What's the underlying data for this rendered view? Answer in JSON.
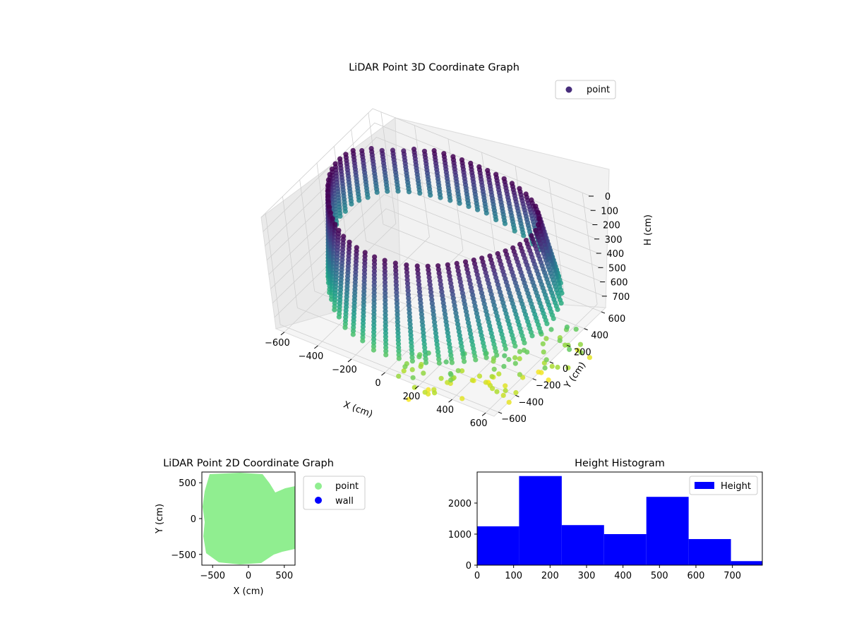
{
  "chart_data": [
    {
      "type": "scatter3d",
      "title": "LiDAR Point 3D Coordinate Graph",
      "xlabel": "X (cm)",
      "ylabel": "Y (cm)",
      "zlabel": "H (cm)",
      "xticks": [
        "−600",
        "−400",
        "−200",
        "0",
        "200",
        "400",
        "600"
      ],
      "yticks": [
        "−600",
        "−400",
        "−200",
        "0",
        "200",
        "400",
        "600"
      ],
      "zticks": [
        "0",
        "100",
        "200",
        "300",
        "400",
        "500",
        "600",
        "700"
      ],
      "xlim": [
        -650,
        650
      ],
      "ylim": [
        -650,
        650
      ],
      "zlim": [
        0,
        780
      ],
      "z_inverted": true,
      "colormap": "viridis",
      "legend": {
        "placement": "upper-right",
        "entries": [
          {
            "label": "point",
            "color": "#472d7b"
          }
        ]
      },
      "grid": true,
      "description_of_shape": "ring of points, radius ~600 cm, heights 0 to ~780 cm"
    },
    {
      "type": "scatter",
      "title": "LiDAR Point 2D Coordinate Graph",
      "xlabel": "X (cm)",
      "ylabel": "Y (cm)",
      "xticks": [
        "−500",
        "0",
        "500"
      ],
      "yticks": [
        "500",
        "0",
        "−500"
      ],
      "xlim": [
        -650,
        650
      ],
      "ylim": [
        -650,
        650
      ],
      "series": [
        {
          "name": "point",
          "color": "#90ee90"
        },
        {
          "name": "wall",
          "color": "#0000ff"
        }
      ],
      "legend": {
        "placement": "outside-right"
      }
    },
    {
      "type": "bar",
      "title": "Height Histogram",
      "series": [
        {
          "name": "Height",
          "color": "#0000ff"
        }
      ],
      "bin_edges": [
        0,
        115,
        232,
        348,
        464,
        580,
        696,
        812
      ],
      "values": [
        1250,
        2870,
        1290,
        1000,
        2200,
        840,
        130
      ],
      "xticks": [
        "0",
        "100",
        "200",
        "300",
        "400",
        "500",
        "600",
        "700"
      ],
      "yticks": [
        "0",
        "1000",
        "2000"
      ],
      "xlim": [
        0,
        782
      ],
      "ylim": [
        0,
        3000
      ],
      "legend": {
        "placement": "upper-right"
      }
    }
  ]
}
